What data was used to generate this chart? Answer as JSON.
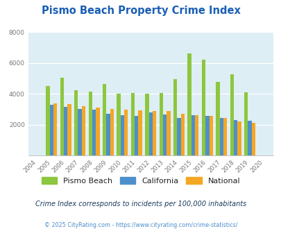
{
  "title": "Pismo Beach Property Crime Index",
  "years": [
    2004,
    2005,
    2006,
    2007,
    2008,
    2009,
    2010,
    2011,
    2012,
    2013,
    2014,
    2015,
    2016,
    2017,
    2018,
    2019,
    2020
  ],
  "pismo_beach": [
    0,
    4500,
    5050,
    4250,
    4150,
    4620,
    4020,
    4080,
    4000,
    4080,
    4970,
    6620,
    6220,
    4760,
    5250,
    4100,
    0
  ],
  "california": [
    0,
    3280,
    3180,
    3040,
    2980,
    2720,
    2640,
    2580,
    2820,
    2680,
    2440,
    2620,
    2560,
    2440,
    2300,
    2280,
    0
  ],
  "national": [
    0,
    3400,
    3320,
    3200,
    3100,
    3040,
    2980,
    2930,
    2900,
    2870,
    2720,
    2640,
    2580,
    2460,
    2220,
    2120,
    0
  ],
  "pismo_color": "#8dc63f",
  "california_color": "#4d8fcc",
  "national_color": "#f5a623",
  "bg_color": "#ddeef5",
  "ylim": [
    0,
    8000
  ],
  "yticks": [
    0,
    2000,
    4000,
    6000,
    8000
  ],
  "subtitle": "Crime Index corresponds to incidents per 100,000 inhabitants",
  "footer": "© 2025 CityRating.com - https://www.cityrating.com/crime-statistics/",
  "title_color": "#1a5fb4",
  "subtitle_color": "#1a3a5c",
  "footer_color": "#4d8fcc"
}
